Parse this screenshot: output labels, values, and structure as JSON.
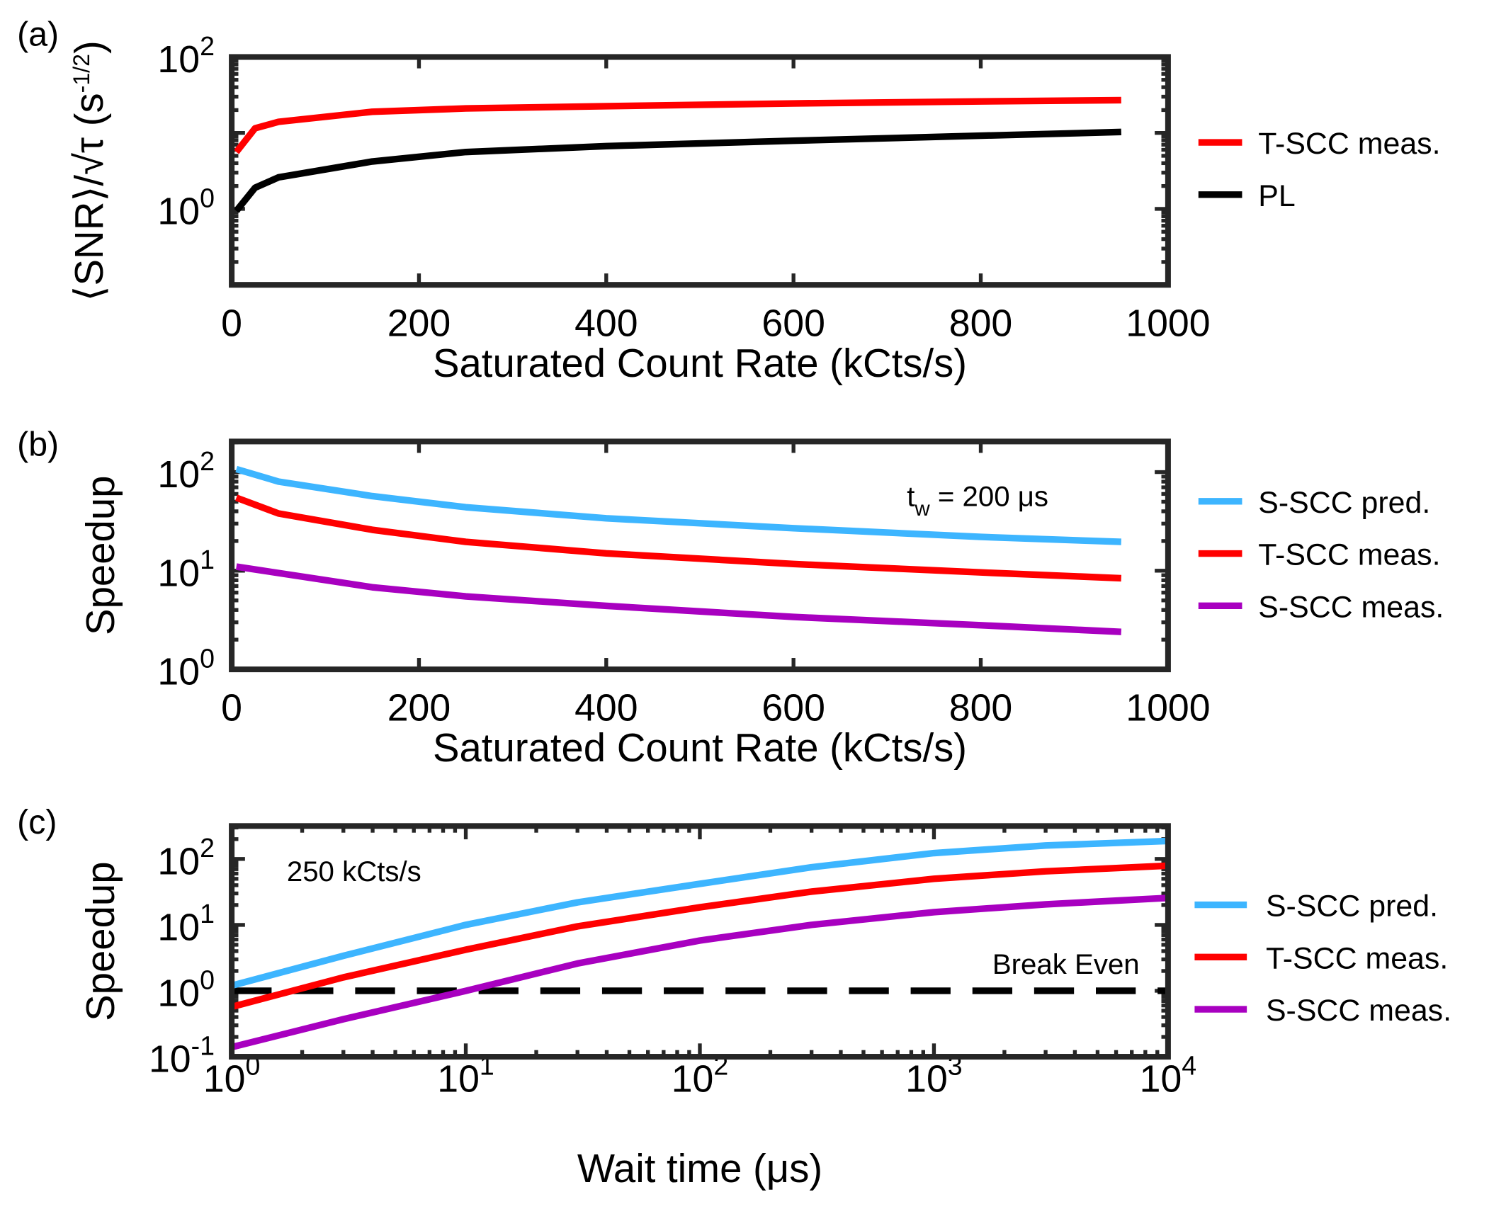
{
  "chart_data": [
    {
      "panel": "(a)",
      "type": "line",
      "xlabel": "Saturated Count Rate (kCts/s)",
      "ylabel": "⟨SNR⟩/√τ (s^-1/2)",
      "ylabel_parts": {
        "main": "⟨SNR⟩/√τ (s",
        "sup": "-1/2",
        "close": ")"
      },
      "xscale": "linear",
      "yscale": "log",
      "xlim": [
        0,
        1000
      ],
      "ylim": [
        0.1,
        100
      ],
      "xticks": [
        0,
        200,
        400,
        600,
        800,
        1000
      ],
      "yticks": [
        {
          "base": "10",
          "exp": "0",
          "value": 1
        },
        {
          "base": "10",
          "exp": "2",
          "value": 100
        }
      ],
      "legend_placement": "right-outside",
      "series": [
        {
          "name": "T-SCC meas.",
          "color": "#ff0000",
          "x": [
            5,
            25,
            50,
            150,
            250,
            400,
            600,
            800,
            950
          ],
          "y": [
            5.6,
            11.5,
            14,
            19,
            21,
            22.5,
            24.5,
            26,
            27
          ]
        },
        {
          "name": "PL",
          "color": "#000000",
          "x": [
            5,
            25,
            50,
            150,
            250,
            400,
            600,
            800,
            950
          ],
          "y": [
            0.94,
            1.9,
            2.6,
            4.2,
            5.6,
            6.7,
            7.9,
            9.2,
            10.3
          ]
        }
      ]
    },
    {
      "panel": "(b)",
      "type": "line",
      "xlabel": "Saturated Count Rate (kCts/s)",
      "ylabel": "Speedup",
      "xscale": "linear",
      "yscale": "log",
      "xlim": [
        0,
        1000
      ],
      "ylim": [
        1,
        204
      ],
      "xticks": [
        0,
        200,
        400,
        600,
        800,
        1000
      ],
      "yticks": [
        {
          "base": "10",
          "exp": "0",
          "value": 1
        },
        {
          "base": "10",
          "exp": "1",
          "value": 10
        },
        {
          "base": "10",
          "exp": "2",
          "value": 100
        }
      ],
      "annotation": {
        "main": "t",
        "sub": "w",
        "rest": " = 200 μs"
      },
      "legend_placement": "right-outside",
      "series": [
        {
          "name": "S-SCC pred.",
          "color": "#3db5ff",
          "x": [
            5,
            50,
            150,
            250,
            400,
            600,
            800,
            950
          ],
          "y": [
            107,
            80,
            57,
            44,
            34,
            27,
            22,
            19.6
          ]
        },
        {
          "name": "T-SCC meas.",
          "color": "#ff0000",
          "x": [
            5,
            50,
            150,
            250,
            400,
            600,
            800,
            950
          ],
          "y": [
            55,
            38,
            26,
            19.6,
            15,
            11.7,
            9.6,
            8.4
          ]
        },
        {
          "name": "S-SCC meas.",
          "color": "#a800c0",
          "x": [
            5,
            150,
            250,
            400,
            600,
            800,
            950
          ],
          "y": [
            11,
            6.8,
            5.5,
            4.4,
            3.4,
            2.8,
            2.4
          ]
        }
      ]
    },
    {
      "panel": "(c)",
      "type": "line",
      "xlabel": "Wait time (μs)",
      "ylabel": "Speedup",
      "xscale": "log",
      "yscale": "log",
      "xlim": [
        1,
        10000
      ],
      "ylim": [
        0.1,
        316
      ],
      "xticks": [
        {
          "base": "10",
          "exp": "0",
          "value": 1
        },
        {
          "base": "10",
          "exp": "1",
          "value": 10
        },
        {
          "base": "10",
          "exp": "2",
          "value": 100
        },
        {
          "base": "10",
          "exp": "3",
          "value": 1000
        },
        {
          "base": "10",
          "exp": "4",
          "value": 10000
        }
      ],
      "yticks": [
        {
          "base": "10",
          "exp": "-1",
          "value": 0.1
        },
        {
          "base": "10",
          "exp": "0",
          "value": 1
        },
        {
          "base": "10",
          "exp": "1",
          "value": 10
        },
        {
          "base": "10",
          "exp": "2",
          "value": 100
        }
      ],
      "annotation": "250 kCts/s",
      "reference_line": {
        "label": "Break Even",
        "y": 1,
        "style": "dashed",
        "color": "#000000"
      },
      "legend_placement": "right-outside",
      "series": [
        {
          "name": "S-SCC pred.",
          "color": "#3db5ff",
          "x": [
            1,
            3,
            10,
            30,
            100,
            300,
            1000,
            3000,
            10000
          ],
          "y": [
            1.2,
            3.4,
            10,
            22,
            42,
            75,
            123,
            160,
            187
          ]
        },
        {
          "name": "T-SCC meas.",
          "color": "#ff0000",
          "x": [
            1,
            3,
            10,
            30,
            100,
            300,
            1000,
            3000,
            10000
          ],
          "y": [
            0.57,
            1.6,
            4.2,
            9.5,
            18.5,
            32,
            50,
            65,
            79
          ]
        },
        {
          "name": "S-SCC meas.",
          "color": "#a800c0",
          "x": [
            1,
            3,
            10,
            30,
            100,
            300,
            1000,
            3000,
            10000
          ],
          "y": [
            0.14,
            0.37,
            1,
            2.6,
            5.8,
            10,
            15.6,
            20.5,
            25.7
          ]
        }
      ]
    }
  ]
}
